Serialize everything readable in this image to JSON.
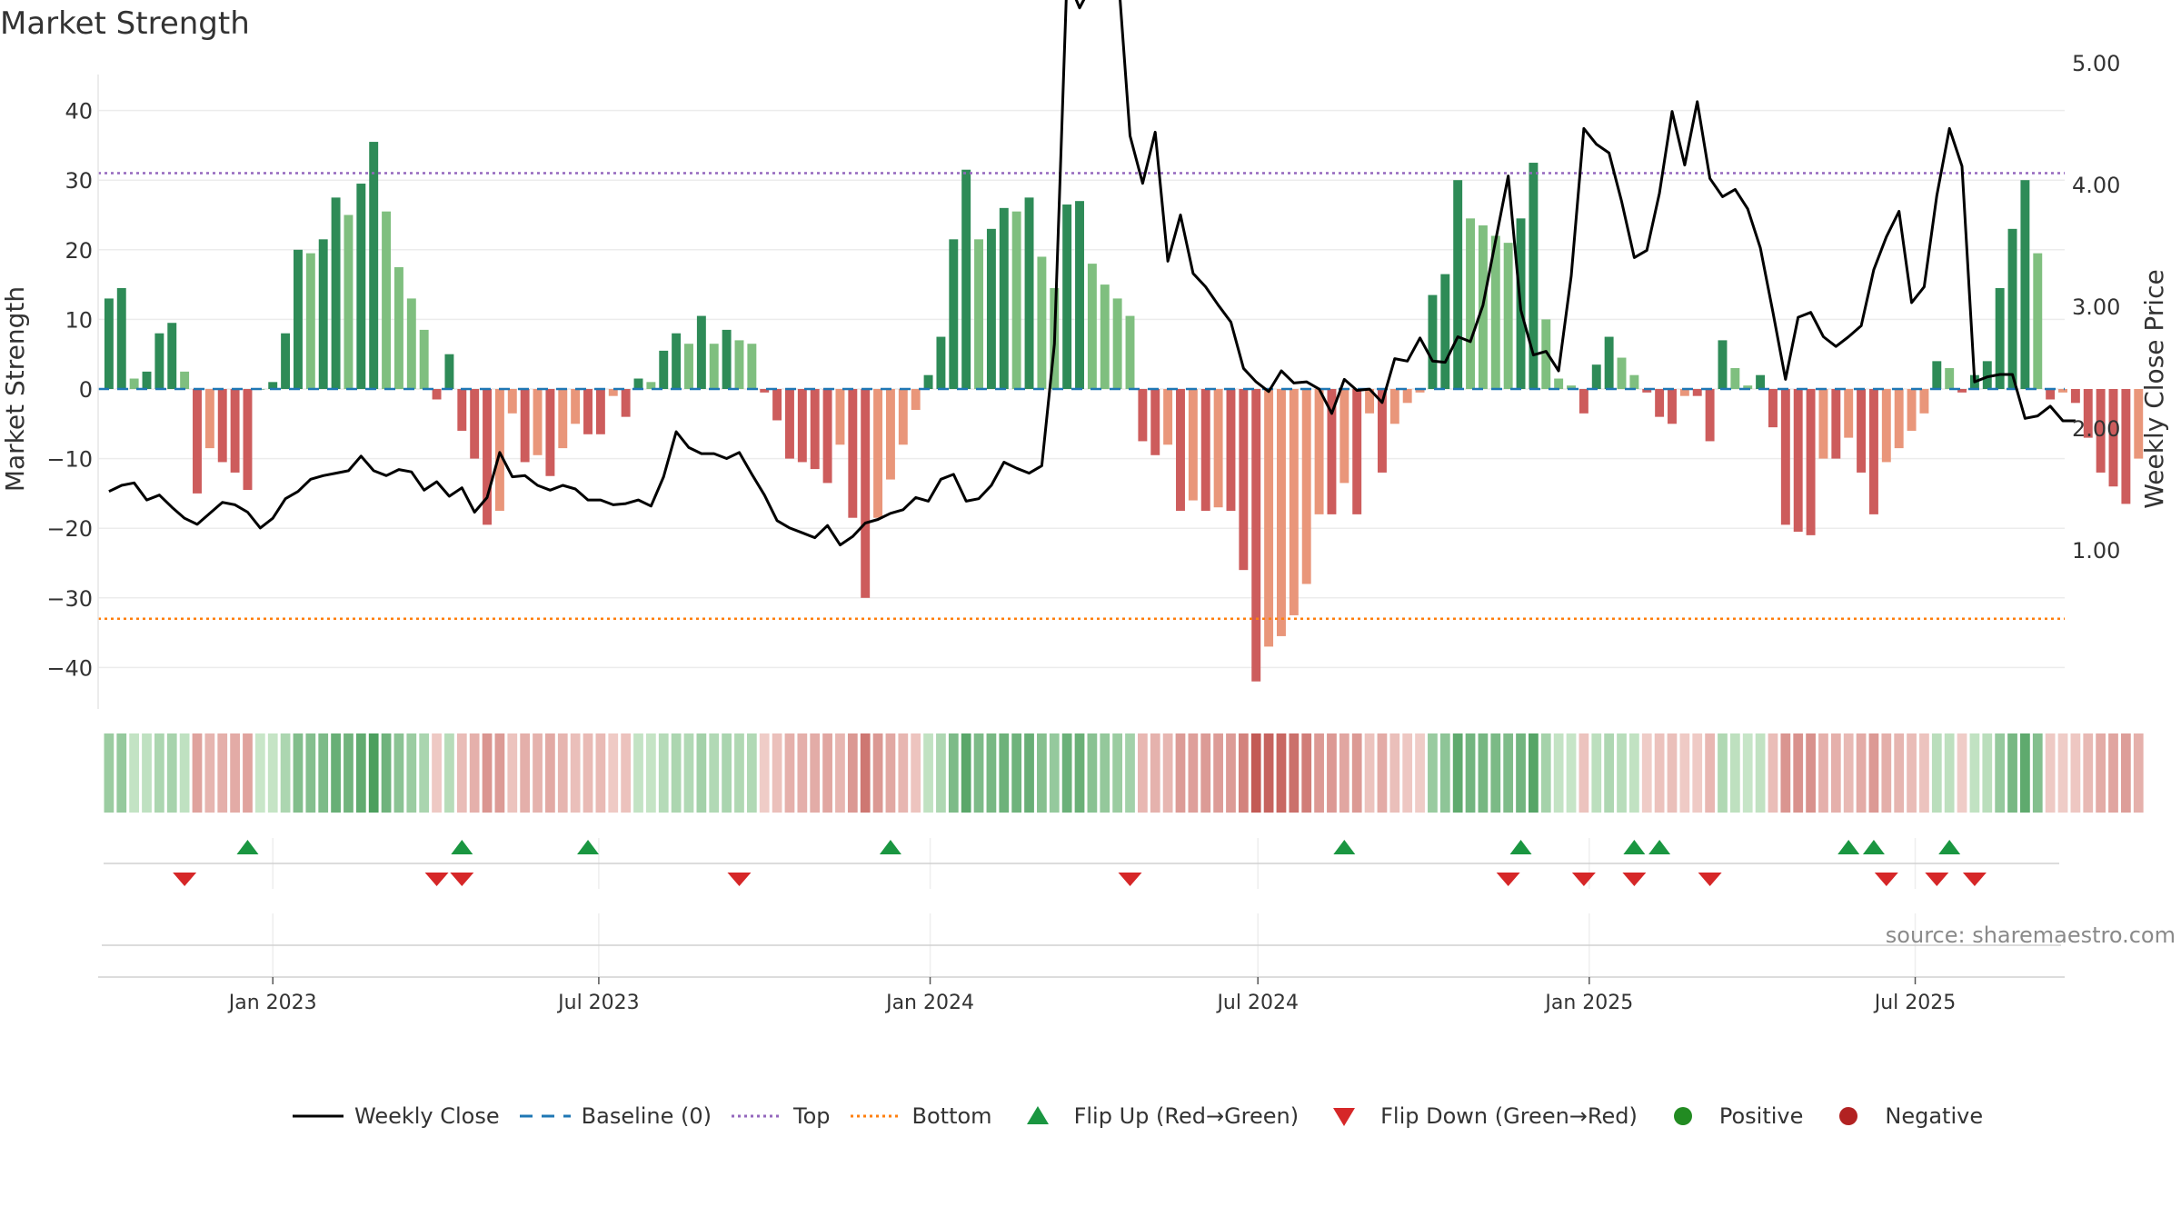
{
  "title": "Market Strength",
  "source": "source: sharemaestro.com",
  "colors": {
    "strong_green": "#2e8b57",
    "light_green": "#7fbf7f",
    "strong_red": "#cd5c5c",
    "light_red": "#e9967a",
    "price_line": "#000000",
    "baseline": "#1f77b4",
    "top_line": "#9467bd",
    "bottom_line": "#ff7f0e",
    "flip_up": "#1a9641",
    "flip_down": "#d62728",
    "positive": "#228b22",
    "negative": "#b22222"
  },
  "legend": {
    "weekly_close": "Weekly Close",
    "baseline": "Baseline (0)",
    "top": "Top",
    "bottom": "Bottom",
    "flip_up": "Flip Up (Red→Green)",
    "flip_down": "Flip Down (Green→Red)",
    "positive": "Positive",
    "negative": "Negative"
  },
  "chart_data": {
    "type": "bar",
    "ylabel": "Market Strength",
    "y2label": "Weekly Close Price",
    "ylim": [
      -45,
      45
    ],
    "y2lim": [
      0.75,
      5.85
    ],
    "yticks": [
      {
        "v": 40,
        "label": "40"
      },
      {
        "v": 30,
        "label": "30"
      },
      {
        "v": 20,
        "label": "20"
      },
      {
        "v": 10,
        "label": "10"
      },
      {
        "v": 0,
        "label": "0"
      },
      {
        "v": -10,
        "label": "−10"
      },
      {
        "v": -20,
        "label": "−20"
      },
      {
        "v": -30,
        "label": "−30"
      },
      {
        "v": -40,
        "label": "−40"
      }
    ],
    "y2ticks": [
      {
        "v": 5,
        "label": "5.00"
      },
      {
        "v": 4,
        "label": "4.00"
      },
      {
        "v": 3,
        "label": "3.00"
      },
      {
        "v": 2,
        "label": "2.00"
      },
      {
        "v": 1,
        "label": "1.00"
      }
    ],
    "x_start": "2022-09-26",
    "x_end": "2025-09-22",
    "xticks": [
      {
        "date": "2023-01-01",
        "label": "Jan 2023"
      },
      {
        "date": "2023-07-01",
        "label": "Jul 2023"
      },
      {
        "date": "2024-01-01",
        "label": "Jan 2024"
      },
      {
        "date": "2024-07-01",
        "label": "Jul 2024"
      },
      {
        "date": "2025-01-01",
        "label": "Jan 2025"
      },
      {
        "date": "2025-07-01",
        "label": "Jul 2025"
      }
    ],
    "top_level": 31,
    "bottom_level": -33,
    "baseline": 0,
    "bars_start": "2022-10-02",
    "bar_week_step": 1,
    "strength": [
      13,
      14.5,
      1.5,
      2.5,
      8,
      9.5,
      2.5,
      -15,
      -8.5,
      -10.5,
      -12,
      -14.5,
      0,
      1,
      8,
      20,
      19.5,
      21.5,
      27.5,
      25,
      29.5,
      35.5,
      25.5,
      17.5,
      13,
      8.5,
      -1.5,
      5,
      -6,
      -10,
      -19.5,
      -17.5,
      -3.5,
      -10.5,
      -9.5,
      -12.5,
      -8.5,
      -5,
      -6.5,
      -6.5,
      -1,
      -4,
      1.5,
      1,
      5.5,
      8,
      6.5,
      10.5,
      6.5,
      8.5,
      7,
      6.5,
      -0.5,
      -4.5,
      -10,
      -10.5,
      -11.5,
      -13.5,
      -8,
      -18.5,
      -30,
      -18.5,
      -13,
      -8,
      -3,
      2,
      7.5,
      21.5,
      31.5,
      21.5,
      23,
      26,
      25.5,
      27.5,
      19,
      14.5,
      26.5,
      27,
      18,
      15,
      13,
      10.5,
      -7.5,
      -9.5,
      -8,
      -17.5,
      -16,
      -17.5,
      -17,
      -17.5,
      -26,
      -42,
      -37,
      -35.5,
      -32.5,
      -28,
      -18,
      -18,
      -13.5,
      -18,
      -3.5,
      -12,
      -5,
      -2,
      -0.5,
      13.5,
      16.5,
      30,
      24.5,
      23.5,
      22,
      21,
      24.5,
      32.5,
      10,
      1.5,
      0.5,
      -3.5,
      3.5,
      7.5,
      4.5,
      2,
      -0.5,
      -4,
      -5,
      -1,
      -1,
      -7.5,
      7,
      3,
      0.5,
      2,
      -5.5,
      -19.5,
      -20.5,
      -21,
      -10,
      -10,
      -7,
      -12,
      -18,
      -10.5,
      -8.5,
      -6,
      -3.5,
      4,
      3,
      -0.5,
      2,
      4,
      14.5,
      23,
      30,
      19.5,
      -1.5,
      -0.5,
      -2,
      -7,
      -12,
      -14,
      -16.5,
      -10
    ],
    "weekly_close": [
      1.48,
      1.53,
      1.55,
      1.41,
      1.45,
      1.35,
      1.26,
      1.21,
      1.3,
      1.39,
      1.37,
      1.31,
      1.18,
      1.26,
      1.42,
      1.48,
      1.58,
      1.61,
      1.63,
      1.65,
      1.77,
      1.65,
      1.61,
      1.66,
      1.64,
      1.49,
      1.56,
      1.44,
      1.51,
      1.31,
      1.43,
      1.8,
      1.6,
      1.61,
      1.53,
      1.49,
      1.53,
      1.5,
      1.41,
      1.41,
      1.37,
      1.38,
      1.41,
      1.36,
      1.6,
      1.97,
      1.84,
      1.79,
      1.79,
      1.75,
      1.8,
      1.62,
      1.45,
      1.24,
      1.18,
      1.14,
      1.1,
      1.2,
      1.04,
      1.11,
      1.22,
      1.25,
      1.3,
      1.33,
      1.43,
      1.4,
      1.58,
      1.62,
      1.4,
      1.42,
      1.53,
      1.72,
      1.67,
      1.63,
      1.69,
      2.69,
      5.7,
      5.45,
      5.65,
      5.88,
      5.82,
      4.4,
      4.01,
      4.43,
      3.37,
      3.75,
      3.27,
      3.16,
      3.01,
      2.87,
      2.49,
      2.38,
      2.3,
      2.47,
      2.37,
      2.38,
      2.32,
      2.12,
      2.4,
      2.31,
      2.32,
      2.21,
      2.57,
      2.55,
      2.74,
      2.55,
      2.54,
      2.75,
      2.71,
      3.01,
      3.54,
      4.07,
      2.97,
      2.6,
      2.63,
      2.47,
      3.25,
      4.46,
      4.33,
      4.26,
      3.86,
      3.4,
      3.46,
      3.93,
      4.6,
      4.16,
      4.68,
      4.05,
      3.9,
      3.96,
      3.8,
      3.48,
      2.95,
      2.4,
      2.91,
      2.95,
      2.75,
      2.67,
      2.75,
      2.84,
      3.3,
      3.57,
      3.78,
      3.03,
      3.16,
      3.91,
      4.46,
      4.15,
      2.38,
      2.42,
      2.44,
      2.44,
      2.08,
      2.1,
      2.18,
      2.06,
      2.06
    ],
    "heat_strength_note": "heatmap strip colors follow strength",
    "flip_up_dates": [
      "2022-12-18",
      "2023-04-16",
      "2023-06-25",
      "2023-12-10",
      "2024-08-18",
      "2024-11-24",
      "2025-01-26",
      "2025-02-09",
      "2025-05-25",
      "2025-06-08",
      "2025-07-20"
    ],
    "flip_down_dates": [
      "2022-11-13",
      "2023-04-02",
      "2023-04-16",
      "2023-09-17",
      "2024-04-21",
      "2024-11-17",
      "2024-12-29",
      "2025-01-26",
      "2025-03-09",
      "2025-06-15",
      "2025-07-13",
      "2025-08-03"
    ]
  }
}
